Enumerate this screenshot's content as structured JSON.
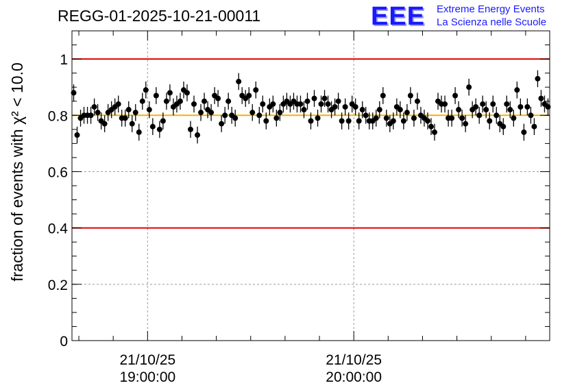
{
  "header": {
    "run_id": "REGG-01-2025-10-21-00011",
    "logo": "EEE",
    "logo_line1": "Extreme Energy Events",
    "logo_line2": "La Scienza nelle Scuole"
  },
  "chart_data": {
    "type": "scatter",
    "title": "REGG-01-2025-10-21-00011",
    "ylabel": "fraction of events with χ² < 10.0",
    "ylim": [
      0,
      1.1
    ],
    "yticks": [
      0,
      0.2,
      0.4,
      0.6,
      0.8,
      1
    ],
    "ytick_labels": [
      "0",
      "0.2",
      "0.4",
      "0.6",
      "0.8",
      "1"
    ],
    "x_unit": "minutes after 18:38:00 on 21/10/25",
    "xlim": [
      0,
      139
    ],
    "xticks": [
      {
        "x": 22,
        "date": "21/10/25",
        "time": "19:00:00"
      },
      {
        "x": 82,
        "date": "21/10/25",
        "time": "20:00:00"
      }
    ],
    "grid": true,
    "reference_lines": [
      {
        "y": 1.0,
        "color": "#e00000"
      },
      {
        "y": 0.4,
        "color": "#e00000"
      },
      {
        "y": 0.8,
        "color": "#f0b400"
      }
    ],
    "error": 0.03,
    "series": [
      {
        "marker_color": "#000000",
        "x": [
          0.5,
          1.5,
          2.5,
          3.5,
          4.5,
          5.5,
          6.5,
          7.5,
          8.5,
          9.5,
          10.5,
          11.5,
          12.5,
          13.5,
          14.5,
          15.5,
          16.5,
          17.5,
          18.5,
          19.5,
          20.5,
          21.5,
          22.5,
          23.5,
          24.5,
          25.5,
          26.5,
          27.5,
          28.5,
          29.5,
          30.5,
          31.5,
          32.5,
          33.5,
          34.5,
          35.5,
          36.5,
          37.5,
          38.5,
          39.5,
          40.5,
          41.5,
          42.5,
          43.5,
          44.5,
          45.5,
          46.5,
          47.5,
          48.5,
          49.5,
          50.5,
          51.5,
          52.5,
          53.5,
          54.5,
          55.5,
          56.5,
          57.5,
          58.5,
          59.5,
          60.5,
          61.5,
          62.5,
          63.5,
          64.5,
          65.5,
          66.5,
          67.5,
          68.5,
          69.5,
          70.5,
          71.5,
          72.5,
          73.5,
          74.5,
          75.5,
          76.5,
          77.5,
          78.5,
          79.5,
          80.5,
          81.5,
          82.5,
          83.5,
          84.5,
          85.5,
          86.5,
          87.5,
          88.5,
          89.5,
          90.5,
          91.5,
          92.5,
          93.5,
          94.5,
          95.5,
          96.5,
          97.5,
          98.5,
          99.5,
          100.5,
          101.5,
          102.5,
          103.5,
          104.5,
          105.5,
          106.5,
          107.5,
          108.5,
          109.5,
          110.5,
          111.5,
          112.5,
          113.5,
          114.5,
          115.5,
          116.5,
          117.5,
          118.5,
          119.5,
          120.5,
          121.5,
          122.5,
          123.5,
          124.5,
          125.5,
          126.5,
          127.5,
          128.5,
          129.5,
          130.5,
          131.5,
          132.5,
          133.5,
          134.5,
          135.5,
          136.5,
          137.5,
          138.5
        ],
        "y": [
          0.88,
          0.73,
          0.79,
          0.8,
          0.8,
          0.8,
          0.83,
          0.81,
          0.78,
          0.77,
          0.81,
          0.82,
          0.83,
          0.84,
          0.79,
          0.79,
          0.82,
          0.77,
          0.81,
          0.74,
          0.85,
          0.89,
          0.82,
          0.76,
          0.87,
          0.75,
          0.78,
          0.85,
          0.88,
          0.83,
          0.84,
          0.85,
          0.89,
          0.88,
          0.75,
          0.84,
          0.73,
          0.81,
          0.85,
          0.82,
          0.81,
          0.87,
          0.86,
          0.77,
          0.8,
          0.85,
          0.8,
          0.79,
          0.92,
          0.87,
          0.86,
          0.87,
          0.81,
          0.89,
          0.8,
          0.84,
          0.78,
          0.83,
          0.84,
          0.79,
          0.81,
          0.84,
          0.85,
          0.84,
          0.85,
          0.84,
          0.84,
          0.82,
          0.85,
          0.78,
          0.86,
          0.79,
          0.84,
          0.86,
          0.84,
          0.82,
          0.83,
          0.85,
          0.78,
          0.83,
          0.78,
          0.84,
          0.83,
          0.78,
          0.82,
          0.8,
          0.78,
          0.78,
          0.79,
          0.82,
          0.87,
          0.79,
          0.77,
          0.78,
          0.83,
          0.82,
          0.78,
          0.81,
          0.87,
          0.79,
          0.85,
          0.8,
          0.79,
          0.78,
          0.76,
          0.74,
          0.85,
          0.84,
          0.84,
          0.79,
          0.79,
          0.87,
          0.82,
          0.79,
          0.77,
          0.9,
          0.82,
          0.83,
          0.8,
          0.84,
          0.82,
          0.78,
          0.84,
          0.8,
          0.77,
          0.76,
          0.84,
          0.82,
          0.79,
          0.89,
          0.83,
          0.74,
          0.83,
          0.8,
          0.76,
          0.93,
          0.86,
          0.84,
          0.83
        ]
      }
    ]
  }
}
